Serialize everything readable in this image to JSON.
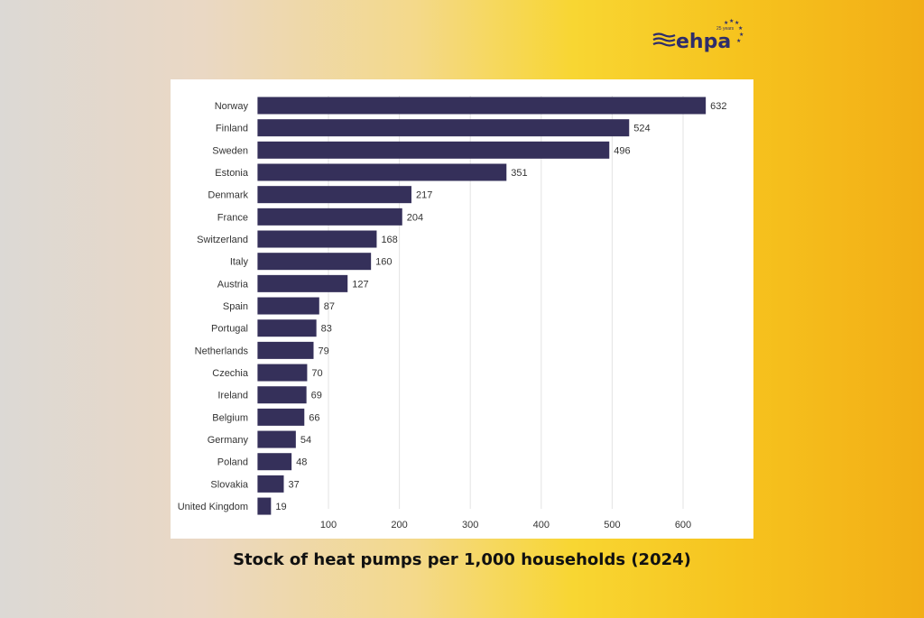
{
  "logo": {
    "text": "ehpa",
    "subtext": "25 years"
  },
  "caption": "Stock of heat pumps per 1,000 households (2024)",
  "colors": {
    "bar": "#35305a",
    "grid": "#e3e3e3",
    "logo": "#2e2d6b"
  },
  "chart_data": {
    "type": "bar",
    "orientation": "horizontal",
    "title": "Stock of heat pumps per 1,000 households (2024)",
    "categories": [
      "Norway",
      "Finland",
      "Sweden",
      "Estonia",
      "Denmark",
      "France",
      "Switzerland",
      "Italy",
      "Austria",
      "Spain",
      "Portugal",
      "Netherlands",
      "Czechia",
      "Ireland",
      "Belgium",
      "Germany",
      "Poland",
      "Slovakia",
      "United Kingdom"
    ],
    "values": [
      632,
      524,
      496,
      351,
      217,
      204,
      168,
      160,
      127,
      87,
      83,
      79,
      70,
      69,
      66,
      54,
      48,
      37,
      19
    ],
    "xticks": [
      100,
      200,
      300,
      400,
      500,
      600
    ],
    "xlim": [
      0,
      690
    ],
    "grid": "vertical",
    "data_labels": true
  }
}
